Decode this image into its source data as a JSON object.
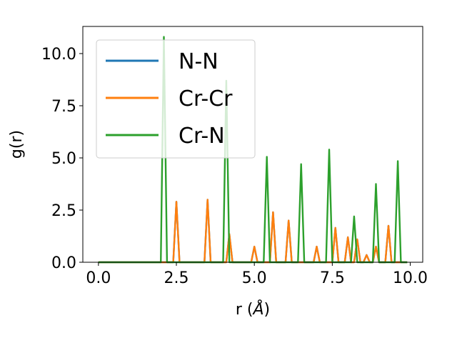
{
  "chart_data": {
    "type": "line",
    "xlabel_main": "r (",
    "xlabel_unit": "Å",
    "xlabel_end": ")",
    "ylabel": "g(r)",
    "xlim": [
      -0.5,
      10.4
    ],
    "ylim": [
      0,
      11.3
    ],
    "x_ticks": [
      0,
      2.5,
      5,
      7.5,
      10
    ],
    "x_tick_labels": [
      "0.0",
      "2.5",
      "5.0",
      "7.5",
      "10.0"
    ],
    "y_ticks": [
      0,
      2.5,
      5,
      7.5,
      10
    ],
    "y_tick_labels": [
      "0.0",
      "2.5",
      "5.0",
      "7.5",
      "10.0"
    ],
    "grid": false,
    "legend_position": "top-left",
    "series": [
      {
        "name": "N-N",
        "color": "#1f77b4",
        "peaks": [
          [
            2.5,
            2.9
          ],
          [
            3.5,
            3.0
          ],
          [
            4.2,
            1.35
          ],
          [
            5.0,
            0.75
          ],
          [
            5.6,
            2.4
          ],
          [
            6.1,
            2.0
          ],
          [
            7.0,
            0.75
          ],
          [
            7.6,
            1.65
          ],
          [
            8.0,
            1.2
          ],
          [
            8.3,
            1.1
          ],
          [
            8.6,
            0.35
          ],
          [
            8.9,
            0.75
          ],
          [
            9.3,
            1.75
          ]
        ]
      },
      {
        "name": "Cr-Cr",
        "color": "#ff7f0e",
        "peaks": [
          [
            2.5,
            2.9
          ],
          [
            3.5,
            3.0
          ],
          [
            4.2,
            1.35
          ],
          [
            5.0,
            0.75
          ],
          [
            5.6,
            2.4
          ],
          [
            6.1,
            2.0
          ],
          [
            7.0,
            0.75
          ],
          [
            7.6,
            1.65
          ],
          [
            8.0,
            1.2
          ],
          [
            8.3,
            1.1
          ],
          [
            8.6,
            0.35
          ],
          [
            8.9,
            0.75
          ],
          [
            9.3,
            1.75
          ]
        ]
      },
      {
        "name": "Cr-N",
        "color": "#2ca02c",
        "peaks": [
          [
            2.1,
            10.8
          ],
          [
            4.1,
            8.7
          ],
          [
            5.4,
            5.05
          ],
          [
            6.5,
            4.7
          ],
          [
            7.4,
            5.4
          ],
          [
            8.2,
            2.2
          ],
          [
            8.9,
            3.75
          ],
          [
            9.6,
            4.85
          ]
        ]
      }
    ],
    "x_start": 0,
    "x_end": 9.9
  }
}
